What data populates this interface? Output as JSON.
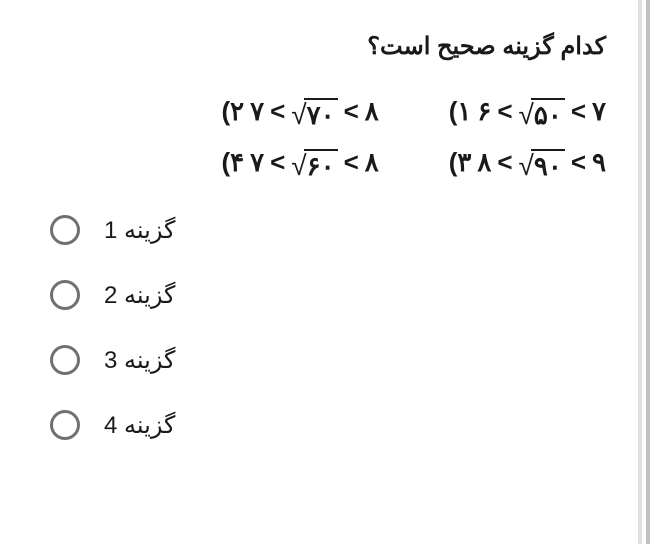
{
  "question": {
    "text": "کدام گزینه صحیح است؟",
    "fontsize": 24,
    "color": "#1a1a1a"
  },
  "math_options": [
    {
      "label": "۱)",
      "lhs": "۶",
      "sqrt_value": "۵۰",
      "rhs": "۷"
    },
    {
      "label": "۲)",
      "lhs": "۷",
      "sqrt_value": "۷۰",
      "rhs": "۸"
    },
    {
      "label": "۳)",
      "lhs": "۸",
      "sqrt_value": "۹۰",
      "rhs": "۹"
    },
    {
      "label": "۴)",
      "lhs": "۷",
      "sqrt_value": "۶۰",
      "rhs": "۸"
    }
  ],
  "answers": [
    {
      "label": "گزینه 1"
    },
    {
      "label": "گزینه 2"
    },
    {
      "label": "گزینه 3"
    },
    {
      "label": "گزینه 4"
    }
  ],
  "colors": {
    "background": "#ffffff",
    "text": "#1a1a1a",
    "radio_border": "#707070",
    "side_border": "#c0c0c0"
  }
}
